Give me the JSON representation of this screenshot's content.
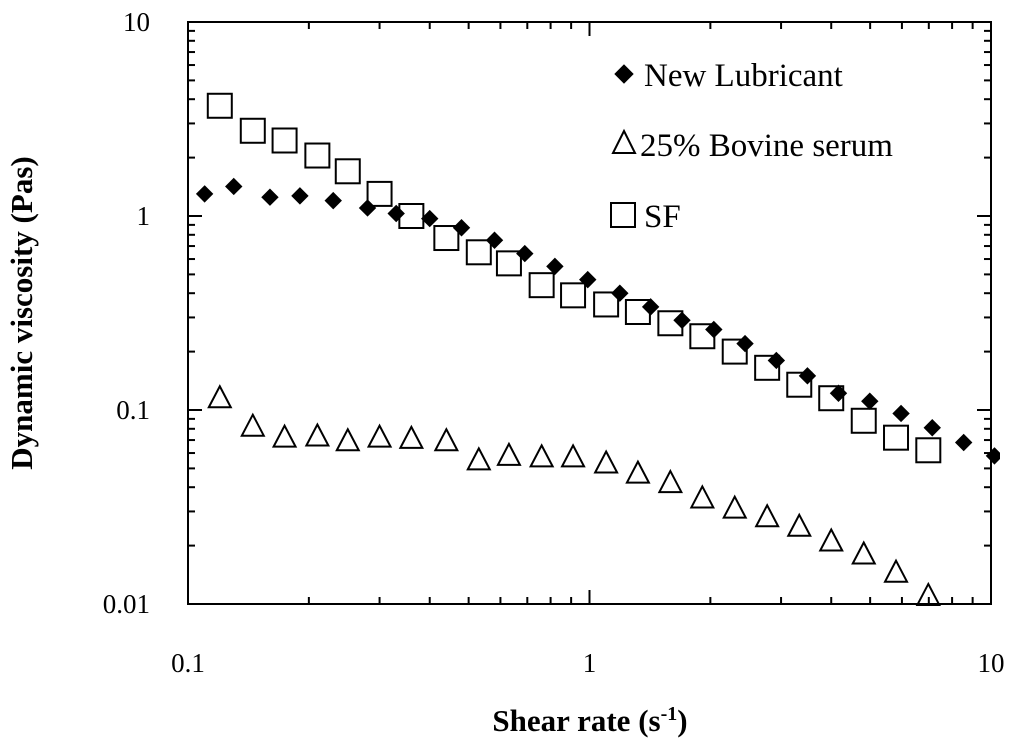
{
  "chart_data": {
    "type": "scatter",
    "x_scale": "log",
    "y_scale": "log",
    "xlabel": "Shear rate (s",
    "xlabel_sup": "-1",
    "xlabel_close": ")",
    "ylabel": "Dynamic viscosity (Pas)",
    "xlim": [
      0.1,
      10
    ],
    "ylim": [
      0.01,
      10
    ],
    "x_ticks": [
      0.1,
      1,
      10
    ],
    "x_tick_labels": [
      "0.1",
      "1",
      "10"
    ],
    "y_ticks": [
      0.01,
      0.1,
      1,
      10
    ],
    "y_tick_labels": [
      "0.01",
      "0.1",
      "1",
      "10"
    ],
    "legend_position": "top-right",
    "grid": false,
    "series": [
      {
        "name": "New Lubricant",
        "marker": "filled-diamond",
        "color": "#000000",
        "points": [
          [
            0.11,
            1.3
          ],
          [
            0.13,
            1.42
          ],
          [
            0.16,
            1.25
          ],
          [
            0.19,
            1.27
          ],
          [
            0.23,
            1.2
          ],
          [
            0.28,
            1.1
          ],
          [
            0.33,
            1.03
          ],
          [
            0.4,
            0.97
          ],
          [
            0.48,
            0.87
          ],
          [
            0.58,
            0.75
          ],
          [
            0.69,
            0.64
          ],
          [
            0.82,
            0.55
          ],
          [
            0.99,
            0.47
          ],
          [
            1.19,
            0.4
          ],
          [
            1.42,
            0.34
          ],
          [
            1.7,
            0.29
          ],
          [
            2.04,
            0.26
          ],
          [
            2.44,
            0.22
          ],
          [
            2.92,
            0.18
          ],
          [
            3.49,
            0.15
          ],
          [
            4.17,
            0.122
          ],
          [
            4.99,
            0.111
          ],
          [
            5.97,
            0.096
          ],
          [
            7.14,
            0.081
          ],
          [
            8.55,
            0.068
          ],
          [
            10.2,
            0.058
          ]
        ]
      },
      {
        "name": "25% Bovine serum",
        "marker": "open-triangle",
        "color": "#000000",
        "points": [
          [
            0.12,
            0.115
          ],
          [
            0.145,
            0.082
          ],
          [
            0.174,
            0.072
          ],
          [
            0.21,
            0.073
          ],
          [
            0.25,
            0.069
          ],
          [
            0.3,
            0.072
          ],
          [
            0.36,
            0.071
          ],
          [
            0.44,
            0.069
          ],
          [
            0.53,
            0.055
          ],
          [
            0.63,
            0.058
          ],
          [
            0.76,
            0.057
          ],
          [
            0.91,
            0.057
          ],
          [
            1.1,
            0.053
          ],
          [
            1.32,
            0.047
          ],
          [
            1.59,
            0.042
          ],
          [
            1.91,
            0.035
          ],
          [
            2.3,
            0.031
          ],
          [
            2.77,
            0.028
          ],
          [
            3.33,
            0.025
          ],
          [
            4.0,
            0.021
          ],
          [
            4.82,
            0.018
          ],
          [
            5.8,
            0.0145
          ],
          [
            6.98,
            0.011
          ]
        ]
      },
      {
        "name": "SF",
        "marker": "open-square",
        "color": "#000000",
        "points": [
          [
            0.12,
            3.7
          ],
          [
            0.145,
            2.75
          ],
          [
            0.174,
            2.45
          ],
          [
            0.21,
            2.05
          ],
          [
            0.25,
            1.7
          ],
          [
            0.3,
            1.3
          ],
          [
            0.36,
            1.0
          ],
          [
            0.44,
            0.77
          ],
          [
            0.53,
            0.65
          ],
          [
            0.63,
            0.57
          ],
          [
            0.76,
            0.44
          ],
          [
            0.91,
            0.39
          ],
          [
            1.1,
            0.35
          ],
          [
            1.32,
            0.32
          ],
          [
            1.59,
            0.28
          ],
          [
            1.91,
            0.24
          ],
          [
            2.3,
            0.2
          ],
          [
            2.77,
            0.165
          ],
          [
            3.33,
            0.135
          ],
          [
            4.0,
            0.115
          ],
          [
            4.82,
            0.088
          ],
          [
            5.8,
            0.072
          ],
          [
            6.98,
            0.062
          ]
        ]
      }
    ]
  }
}
